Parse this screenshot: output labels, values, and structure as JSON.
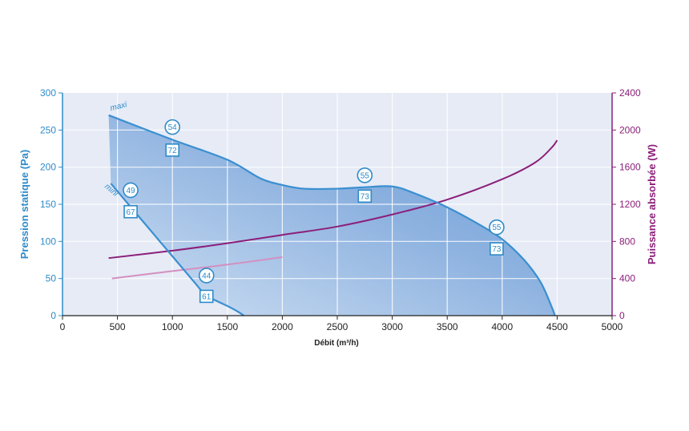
{
  "chart_data": {
    "type": "line",
    "xlabel": "Débit (m³/h)",
    "ylabel_left": "Pression statique (Pa)",
    "ylabel_right": "Puissance absorbée (W)",
    "xlim": [
      0,
      5000
    ],
    "ylim_left": [
      0,
      300
    ],
    "ylim_right": [
      0,
      2400
    ],
    "x_ticks": [
      "0",
      "500",
      "1000",
      "1500",
      "2000",
      "2500",
      "3000",
      "3500",
      "4000",
      "4500",
      "5000"
    ],
    "y_left_ticks": [
      "0",
      "50",
      "100",
      "150",
      "200",
      "250",
      "300"
    ],
    "y_right_ticks": [
      "0",
      "400",
      "800",
      "1200",
      "1600",
      "2000",
      "2400"
    ],
    "grid": true,
    "pressure_series": [
      {
        "name": "maxi",
        "axis": "left",
        "color": "#3a8fd0",
        "points": [
          [
            420,
            270
          ],
          [
            1000,
            237
          ],
          [
            1500,
            210
          ],
          [
            1800,
            185
          ],
          [
            2000,
            176
          ],
          [
            2200,
            171
          ],
          [
            2500,
            171
          ],
          [
            2750,
            173
          ],
          [
            3000,
            174
          ],
          [
            3200,
            165
          ],
          [
            3500,
            146
          ],
          [
            3800,
            122
          ],
          [
            4000,
            103
          ],
          [
            4200,
            75
          ],
          [
            4350,
            45
          ],
          [
            4450,
            12
          ],
          [
            4480,
            0
          ]
        ],
        "badges": [
          {
            "x": 1000,
            "y": 254,
            "shape": "circle",
            "label": "54"
          },
          {
            "x": 1000,
            "y": 223,
            "shape": "square",
            "label": "72"
          },
          {
            "x": 2750,
            "y": 189,
            "shape": "circle",
            "label": "55"
          },
          {
            "x": 2750,
            "y": 161,
            "shape": "square",
            "label": "73"
          },
          {
            "x": 3950,
            "y": 119,
            "shape": "circle",
            "label": "55"
          },
          {
            "x": 3950,
            "y": 90,
            "shape": "square",
            "label": "73"
          }
        ]
      },
      {
        "name": "mini",
        "axis": "left",
        "color": "#3a8fd0",
        "points": [
          [
            440,
            178
          ],
          [
            600,
            150
          ],
          [
            800,
            115
          ],
          [
            1000,
            80
          ],
          [
            1200,
            45
          ],
          [
            1300,
            28
          ],
          [
            1400,
            20
          ],
          [
            1500,
            13
          ],
          [
            1600,
            5
          ],
          [
            1650,
            0
          ]
        ],
        "badges": [
          {
            "x": 620,
            "y": 169,
            "shape": "circle",
            "label": "49"
          },
          {
            "x": 620,
            "y": 140,
            "shape": "square",
            "label": "67"
          },
          {
            "x": 1310,
            "y": 54,
            "shape": "circle",
            "label": "44"
          },
          {
            "x": 1310,
            "y": 26,
            "shape": "square",
            "label": "61"
          }
        ]
      }
    ],
    "power_series": [
      {
        "name": "maxi",
        "axis": "right",
        "color": "#8b1f7a",
        "points": [
          [
            420,
            620
          ],
          [
            1000,
            700
          ],
          [
            1500,
            780
          ],
          [
            2000,
            870
          ],
          [
            2500,
            960
          ],
          [
            3000,
            1090
          ],
          [
            3500,
            1250
          ],
          [
            4000,
            1470
          ],
          [
            4300,
            1650
          ],
          [
            4450,
            1810
          ],
          [
            4500,
            1890
          ]
        ]
      },
      {
        "name": "mini",
        "axis": "right",
        "color": "#d48fc0",
        "points": [
          [
            450,
            400
          ],
          [
            1000,
            480
          ],
          [
            1500,
            550
          ],
          [
            2000,
            630
          ]
        ]
      }
    ]
  }
}
